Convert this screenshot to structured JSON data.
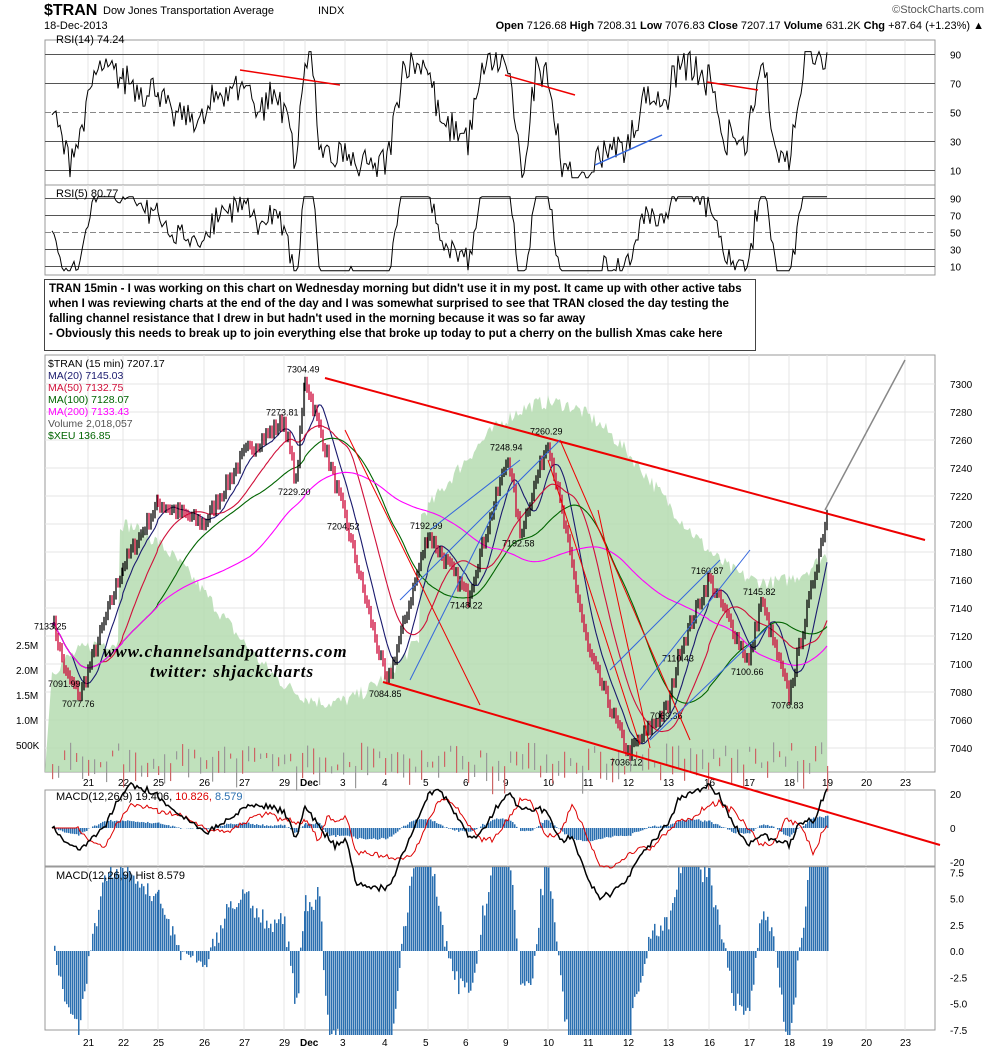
{
  "header": {
    "symbol": "$TRAN",
    "name": "Dow Jones Transportation Average",
    "exchange": "INDX",
    "date": "18-Dec-2013",
    "source": "©StockCharts.com",
    "quote": {
      "open_label": "Open",
      "open": "7126.68",
      "high_label": "High",
      "high": "7208.31",
      "low_label": "Low",
      "low": "7076.83",
      "close_label": "Close",
      "close": "7207.17",
      "volume_label": "Volume",
      "volume": "631.2K",
      "chg_label": "Chg",
      "chg": "+87.64 (+1.23%)"
    }
  },
  "panels": {
    "rsi14": "RSI(14) 74.24",
    "rsi5": "RSI(5) 80.77",
    "macd": "MACD(12,26,9) 19.406,",
    "macd_sig": "10.826,",
    "macd_hist_val": "8.579",
    "hist": "MACD(12,26,9) Hist 8.579"
  },
  "legend": [
    {
      "text": "$TRAN (15 min) 7207.17",
      "color": "#000000"
    },
    {
      "text": "MA(20) 7145.03",
      "color": "#1a1a6e"
    },
    {
      "text": "MA(50) 7132.75",
      "color": "#d0103a"
    },
    {
      "text": "MA(100) 7128.07",
      "color": "#006400"
    },
    {
      "text": "MA(200) 7133.43",
      "color": "#ff00ff"
    },
    {
      "text": "Volume 2,018,057",
      "color": "#555555"
    },
    {
      "text": "$XEU  136.85",
      "color": "#006400"
    }
  ],
  "note": [
    "TRAN 15min - I was working on this chart on Wednesday morning but didn't use it in my post. It came up with other active tabs when I was reviewing charts at the end of the day and I was somewhat surprised to see that TRAN closed the day testing the falling channel resistance that I drew in but hadn't used in the morning because it was so far away",
    "- Obviously this needs to break up to join everything else that broke up today to put a cherry on the bullish Xmas cake here"
  ],
  "watermark": [
    "www.channelsandpatterns.com",
    "twitter: shjackcharts"
  ],
  "chart_data": {
    "type": "line",
    "title": "$TRAN (15 min)",
    "x_ticks": [
      "21",
      "22",
      "25",
      "26",
      "27",
      "29",
      "Dec",
      "3",
      "4",
      "5",
      "6",
      "9",
      "10",
      "11",
      "12",
      "13",
      "16",
      "17",
      "18",
      "19",
      "20",
      "23"
    ],
    "y_ticks": [
      7040,
      7060,
      7080,
      7100,
      7120,
      7140,
      7160,
      7180,
      7200,
      7220,
      7240,
      7260,
      7280,
      7300
    ],
    "ylim": [
      7030,
      7315
    ],
    "volume_ticks": [
      "500K",
      "1.0M",
      "1.5M",
      "2.0M",
      "2.5M"
    ],
    "rsi_ticks": [
      10,
      30,
      50,
      70,
      90
    ],
    "macd_ticks": [
      20,
      0,
      -20
    ],
    "hist_ticks": [
      7.5,
      5.0,
      2.5,
      0.0,
      -2.5,
      -5.0,
      -7.5
    ],
    "price_points": [
      {
        "date": "21",
        "price": 7133.25,
        "label": "7133.25"
      },
      {
        "date": "21",
        "price": 7091.99,
        "label": "7091.99"
      },
      {
        "date": "21",
        "price": 7077.76,
        "label": "7077.76"
      },
      {
        "date": "22",
        "price": 7170
      },
      {
        "date": "25",
        "price": 7215
      },
      {
        "date": "26",
        "price": 7200
      },
      {
        "date": "27",
        "price": 7250
      },
      {
        "date": "29",
        "price": 7273.81,
        "label": "7273.81"
      },
      {
        "date": "29",
        "price": 7229.2,
        "label": "7229.20"
      },
      {
        "date": "Dec",
        "price": 7304.49,
        "label": "7304.49"
      },
      {
        "date": "3",
        "price": 7204.52,
        "label": "7204.52"
      },
      {
        "date": "4",
        "price": 7084.85,
        "label": "7084.85"
      },
      {
        "date": "5",
        "price": 7192.99,
        "label": "7192.99"
      },
      {
        "date": "6",
        "price": 7148.22,
        "label": "7148.22"
      },
      {
        "date": "9",
        "price": 7248.94,
        "label": "7248.94"
      },
      {
        "date": "9",
        "price": 7192.58,
        "label": "7192.58"
      },
      {
        "date": "10",
        "price": 7260.29,
        "label": "7260.29"
      },
      {
        "date": "11",
        "price": 7110
      },
      {
        "date": "12",
        "price": 7036.12,
        "label": "7036.12"
      },
      {
        "date": "13",
        "price": 7069.36,
        "label": "7069.36"
      },
      {
        "date": "13",
        "price": 7110.43,
        "label": "7110.43"
      },
      {
        "date": "16",
        "price": 7160.87,
        "label": "7160.87"
      },
      {
        "date": "17",
        "price": 7100.66,
        "label": "7100.66"
      },
      {
        "date": "17",
        "price": 7145.82,
        "label": "7145.82"
      },
      {
        "date": "18",
        "price": 7076.83,
        "label": "7076.83"
      },
      {
        "date": "19",
        "price": 7207.17
      }
    ],
    "colors": {
      "price": "#000000",
      "down": "#cc0033",
      "xeu_fill": "#b5dcb0",
      "trendline": "#ee0000",
      "channel": "#3366dd",
      "macd_hist": "#2a6fb0"
    }
  }
}
